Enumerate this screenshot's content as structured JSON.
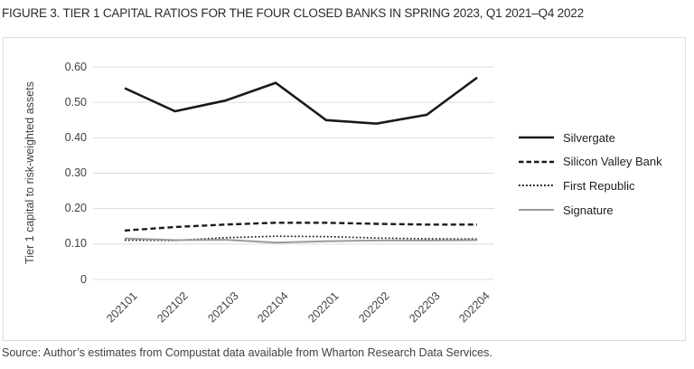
{
  "figure": {
    "title": "FIGURE 3. TIER 1 CAPITAL RATIOS FOR THE FOUR CLOSED BANKS IN SPRING 2023, Q1 2021–Q4 2022",
    "source": "Source: Author’s estimates from Compustat data available from Wharton Research Data Services."
  },
  "colors": {
    "line_black": "#1a1a1a",
    "line_gray": "#9a9a9a",
    "gridline": "#dcdcdc",
    "box_border": "#dcdcdc"
  },
  "chart_data": {
    "type": "line",
    "title": "",
    "xlabel": "",
    "ylabel": "Tier 1 capital to risk-weighted assets",
    "ylim": [
      0,
      0.6
    ],
    "grid": "horizontal",
    "legend_position": "right-outside",
    "x_categories": [
      "202101",
      "202102",
      "202103",
      "202104",
      "202201",
      "202202",
      "202203",
      "202204"
    ],
    "y_ticks": [
      {
        "label": "0.60",
        "value": 0.6
      },
      {
        "label": "0.50",
        "value": 0.5
      },
      {
        "label": "0.40",
        "value": 0.4
      },
      {
        "label": "0.30",
        "value": 0.3
      },
      {
        "label": "0.20",
        "value": 0.2
      },
      {
        "label": "0.10",
        "value": 0.1
      },
      {
        "label": "0",
        "value": 0.0
      }
    ],
    "series": [
      {
        "name": "Silvergate",
        "style": "solid",
        "color": "#1a1a1a",
        "values": [
          0.54,
          0.475,
          0.505,
          0.555,
          0.45,
          0.44,
          0.465,
          0.57
        ]
      },
      {
        "name": "Silicon Valley Bank",
        "style": "dashed",
        "color": "#1a1a1a",
        "values": [
          0.138,
          0.148,
          0.155,
          0.16,
          0.16,
          0.157,
          0.155,
          0.155
        ]
      },
      {
        "name": "First Republic",
        "style": "dotted",
        "color": "#1a1a1a",
        "values": [
          0.111,
          0.11,
          0.118,
          0.122,
          0.121,
          0.117,
          0.115,
          0.114
        ]
      },
      {
        "name": "Signature",
        "style": "solid",
        "color": "#9a9a9a",
        "values": [
          0.116,
          0.111,
          0.112,
          0.104,
          0.108,
          0.11,
          0.11,
          0.111
        ]
      }
    ]
  }
}
